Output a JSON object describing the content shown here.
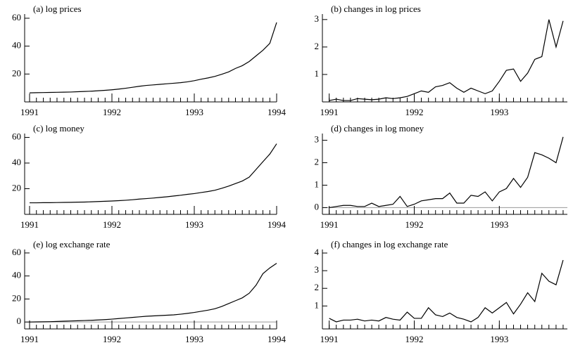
{
  "chart_data": [
    {
      "type": "line",
      "title": "(a) log prices",
      "color": "#000000",
      "zero_line": false,
      "x": [
        1991,
        1991.083,
        1991.167,
        1991.25,
        1991.333,
        1991.417,
        1991.5,
        1991.583,
        1991.667,
        1991.75,
        1991.833,
        1991.917,
        1992,
        1992.083,
        1992.167,
        1992.25,
        1992.333,
        1992.417,
        1992.5,
        1992.583,
        1992.667,
        1992.75,
        1992.833,
        1992.917,
        1993,
        1993.083,
        1993.167,
        1993.25,
        1993.333,
        1993.417,
        1993.5,
        1993.583,
        1993.667,
        1993.75,
        1993.833,
        1993.917,
        1994
      ],
      "values": [
        6.5,
        6.6,
        6.7,
        6.8,
        6.9,
        7.0,
        7.1,
        7.3,
        7.5,
        7.7,
        8.0,
        8.3,
        8.7,
        9.2,
        9.8,
        10.5,
        11.2,
        11.8,
        12.2,
        12.6,
        13.0,
        13.4,
        13.8,
        14.4,
        15.2,
        16.3,
        17.2,
        18.3,
        19.8,
        21.5,
        24,
        26,
        29,
        33,
        37,
        42,
        57
      ],
      "xlim": [
        1990.94,
        1994
      ],
      "xticks": [
        1991,
        1992,
        1993,
        1994
      ],
      "ylim": [
        0,
        63
      ],
      "yticks": [
        20,
        40,
        60
      ]
    },
    {
      "type": "line",
      "title": "(b) changes in log prices",
      "color": "#000000",
      "zero_line": false,
      "x": [
        1991,
        1991.083,
        1991.167,
        1991.25,
        1991.333,
        1991.417,
        1991.5,
        1991.583,
        1991.667,
        1991.75,
        1991.833,
        1991.917,
        1992,
        1992.083,
        1992.167,
        1992.25,
        1992.333,
        1992.417,
        1992.5,
        1992.583,
        1992.667,
        1992.75,
        1992.833,
        1992.917,
        1993,
        1993.083,
        1993.167,
        1993.25,
        1993.333,
        1993.417,
        1993.5,
        1993.583,
        1993.667,
        1993.75
      ],
      "values": [
        0.05,
        0.1,
        0.05,
        0.05,
        0.12,
        0.1,
        0.08,
        0.1,
        0.15,
        0.12,
        0.15,
        0.2,
        0.3,
        0.4,
        0.35,
        0.55,
        0.6,
        0.7,
        0.5,
        0.35,
        0.5,
        0.4,
        0.3,
        0.4,
        0.75,
        1.15,
        1.2,
        0.75,
        1.05,
        1.55,
        1.65,
        3.0,
        2.0,
        2.95
      ],
      "xlim": [
        1990.92,
        1993.8
      ],
      "xticks": [
        1991,
        1992,
        1993
      ],
      "ylim": [
        0,
        3.2
      ],
      "yticks": [
        1,
        2,
        3
      ]
    },
    {
      "type": "line",
      "title": "(c) log money",
      "color": "#000000",
      "zero_line": false,
      "x": [
        1991,
        1991.083,
        1991.167,
        1991.25,
        1991.333,
        1991.417,
        1991.5,
        1991.583,
        1991.667,
        1991.75,
        1991.833,
        1991.917,
        1992,
        1992.083,
        1992.167,
        1992.25,
        1992.333,
        1992.417,
        1992.5,
        1992.583,
        1992.667,
        1992.75,
        1992.833,
        1992.917,
        1993,
        1993.083,
        1993.167,
        1993.25,
        1993.333,
        1993.417,
        1993.5,
        1993.583,
        1993.667,
        1993.75,
        1993.833,
        1993.917,
        1994
      ],
      "values": [
        9.0,
        9.0,
        9.1,
        9.1,
        9.2,
        9.3,
        9.4,
        9.5,
        9.6,
        9.8,
        10.0,
        10.2,
        10.4,
        10.7,
        11.0,
        11.4,
        11.9,
        12.3,
        12.7,
        13.2,
        13.7,
        14.3,
        14.9,
        15.6,
        16.2,
        17.0,
        17.8,
        18.8,
        20.3,
        22.0,
        24.0,
        26.0,
        29.0,
        35.0,
        41.0,
        47.0,
        55.0
      ],
      "xlim": [
        1990.94,
        1994
      ],
      "xticks": [
        1991,
        1992,
        1993,
        1994
      ],
      "ylim": [
        0,
        63
      ],
      "yticks": [
        20,
        40,
        60
      ]
    },
    {
      "type": "line",
      "title": "(d) changes in log money",
      "color": "#000000",
      "zero_line": true,
      "x": [
        1991,
        1991.083,
        1991.167,
        1991.25,
        1991.333,
        1991.417,
        1991.5,
        1991.583,
        1991.667,
        1991.75,
        1991.833,
        1991.917,
        1992,
        1992.083,
        1992.167,
        1992.25,
        1992.333,
        1992.417,
        1992.5,
        1992.583,
        1992.667,
        1992.75,
        1992.833,
        1992.917,
        1993,
        1993.083,
        1993.167,
        1993.25,
        1993.333,
        1993.417,
        1993.5,
        1993.583,
        1993.667,
        1993.75
      ],
      "values": [
        0,
        0.05,
        0.1,
        0.1,
        0.05,
        0.05,
        0.2,
        0.05,
        0.1,
        0.15,
        0.5,
        0.05,
        0.15,
        0.3,
        0.35,
        0.4,
        0.4,
        0.65,
        0.2,
        0.2,
        0.55,
        0.5,
        0.7,
        0.3,
        0.7,
        0.85,
        1.3,
        0.9,
        1.35,
        2.45,
        2.35,
        2.2,
        2.0,
        3.15
      ],
      "xlim": [
        1990.92,
        1993.8
      ],
      "xticks": [
        1991,
        1992,
        1993
      ],
      "ylim": [
        -0.3,
        3.3
      ],
      "yticks": [
        0,
        1,
        2,
        3
      ]
    },
    {
      "type": "line",
      "title": "(e) log exchange rate",
      "color": "#000000",
      "zero_line": true,
      "x": [
        1991,
        1991.083,
        1991.167,
        1991.25,
        1991.333,
        1991.417,
        1991.5,
        1991.583,
        1991.667,
        1991.75,
        1991.833,
        1991.917,
        1992,
        1992.083,
        1992.167,
        1992.25,
        1992.333,
        1992.417,
        1992.5,
        1992.583,
        1992.667,
        1992.75,
        1992.833,
        1992.917,
        1993,
        1993.083,
        1993.167,
        1993.25,
        1993.333,
        1993.417,
        1993.5,
        1993.583,
        1993.667,
        1993.75,
        1993.833,
        1993.917,
        1994
      ],
      "values": [
        0.0,
        0.1,
        0.2,
        0.3,
        0.5,
        0.7,
        0.9,
        1.1,
        1.3,
        1.5,
        1.8,
        2.1,
        2.5,
        3.0,
        3.5,
        4.0,
        4.5,
        5.0,
        5.3,
        5.6,
        5.9,
        6.2,
        6.8,
        7.5,
        8.3,
        9.3,
        10.3,
        11.5,
        13.5,
        16,
        18.5,
        21,
        25,
        32,
        42,
        47,
        51
      ],
      "xlim": [
        1990.94,
        1994
      ],
      "xticks": [
        1991,
        1992,
        1993,
        1994
      ],
      "ylim": [
        -6,
        63
      ],
      "yticks": [
        0,
        20,
        40,
        60
      ]
    },
    {
      "type": "line",
      "title": "(f) changes in log exchange rate",
      "color": "#000000",
      "zero_line": false,
      "x": [
        1991,
        1991.083,
        1991.167,
        1991.25,
        1991.333,
        1991.417,
        1991.5,
        1991.583,
        1991.667,
        1991.75,
        1991.833,
        1991.917,
        1992,
        1992.083,
        1992.167,
        1992.25,
        1992.333,
        1992.417,
        1992.5,
        1992.583,
        1992.667,
        1992.75,
        1992.833,
        1992.917,
        1993,
        1993.083,
        1993.167,
        1993.25,
        1993.333,
        1993.417,
        1993.5,
        1993.583,
        1993.667,
        1993.75
      ],
      "values": [
        0.3,
        0.1,
        0.2,
        0.2,
        0.25,
        0.15,
        0.2,
        0.15,
        0.35,
        0.25,
        0.2,
        0.65,
        0.3,
        0.3,
        0.9,
        0.5,
        0.4,
        0.6,
        0.35,
        0.25,
        0.1,
        0.35,
        0.9,
        0.6,
        0.9,
        1.2,
        0.55,
        1.1,
        1.75,
        1.25,
        2.85,
        2.4,
        2.2,
        3.6
      ],
      "xlim": [
        1990.92,
        1993.8
      ],
      "xticks": [
        1991,
        1992,
        1993
      ],
      "ylim": [
        -0.3,
        4.2
      ],
      "yticks": [
        1,
        2,
        3,
        4
      ]
    }
  ]
}
